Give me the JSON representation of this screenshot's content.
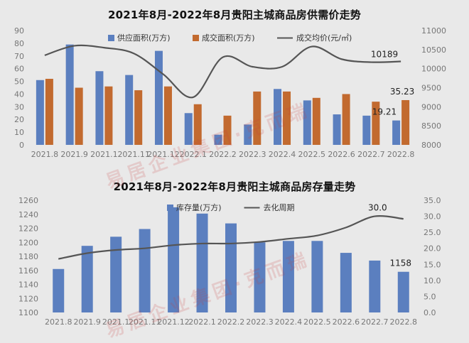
{
  "charts": [
    {
      "id": "top",
      "title": "2021年8月-2022年8月贵阳主城商品房供需价走势"
    },
    {
      "id": "bottom",
      "title": "2021年8月-2022年8月贵阳主城商品房存量走势"
    }
  ],
  "chart_data": [
    {
      "type": "bar",
      "title": "2021年8月-2022年8月贵阳主城商品房供需价走势",
      "categories": [
        "2021.8",
        "2021.9",
        "2021.10",
        "2021.11",
        "2021.12",
        "2022.1",
        "2022.2",
        "2022.3",
        "2022.4",
        "2022.5",
        "2022.6",
        "2022.7",
        "2022.8"
      ],
      "category_labels": [
        "2021.8",
        "2021.9",
        "2021.1",
        "2021.11",
        "2021.12",
        "2022.1",
        "2022.2",
        "2022.3",
        "2022.4",
        "2022.5",
        "2022.6",
        "2022.7",
        "2022.8"
      ],
      "series": [
        {
          "name": "供应面积(万方)",
          "type": "bar",
          "axis": "left",
          "color": "#5b7fbf",
          "values": [
            51,
            79,
            58,
            55,
            74,
            25,
            8,
            16,
            44,
            35,
            24,
            23,
            19.21
          ]
        },
        {
          "name": "成交面积(万方)",
          "type": "bar",
          "axis": "left",
          "color": "#c26a2f",
          "values": [
            52,
            45,
            46,
            43,
            46,
            32,
            23,
            42,
            42,
            37,
            40,
            34,
            35.23
          ]
        },
        {
          "name": "成交均价(元/㎡)",
          "type": "line",
          "axis": "right",
          "color": "#555555",
          "values": [
            10350,
            10600,
            10550,
            10400,
            9850,
            9250,
            10300,
            10050,
            10050,
            10580,
            10250,
            10170,
            10189
          ]
        }
      ],
      "ylim_left": [
        0,
        90
      ],
      "ylim_right": [
        8000,
        11000
      ],
      "yticks_left": [
        0,
        10,
        20,
        30,
        40,
        50,
        60,
        70,
        80,
        90
      ],
      "yticks_right": [
        8000,
        8500,
        9000,
        9500,
        10000,
        10500,
        11000
      ],
      "data_labels": [
        {
          "series": 0,
          "index": 12,
          "text": "19.21"
        },
        {
          "series": 1,
          "index": 12,
          "text": "35.23"
        },
        {
          "series": 2,
          "index": 12,
          "text": "10189"
        }
      ],
      "legend_position": "top",
      "grid": false
    },
    {
      "type": "bar",
      "title": "2021年8月-2022年8月贵阳主城商品房存量走势",
      "categories": [
        "2021.8",
        "2021.9",
        "2021.10",
        "2021.11",
        "2021.12",
        "2022.1",
        "2022.2",
        "2022.3",
        "2022.4",
        "2022.5",
        "2022.6",
        "2022.7",
        "2022.8"
      ],
      "category_labels": [
        "2021.8",
        "2021.9",
        "2021.1",
        "2021.11",
        "2021.12",
        "2022.1",
        "2022.2",
        "2022.3",
        "2022.4",
        "2022.5",
        "2022.6",
        "2022.7",
        "2022.8"
      ],
      "series": [
        {
          "name": "库存量(万方)",
          "type": "bar",
          "axis": "left",
          "color": "#5b7fbf",
          "values": [
            1162,
            1195,
            1208,
            1219,
            1250,
            1241,
            1227,
            1200,
            1202,
            1202,
            1185,
            1174,
            1158
          ]
        },
        {
          "name": "去化周期",
          "type": "line",
          "axis": "right",
          "color": "#555555",
          "values": [
            16.7,
            18.5,
            19.5,
            20.0,
            21.0,
            21.5,
            21.5,
            22.0,
            23.0,
            24.0,
            26.5,
            30.0,
            29.2
          ]
        }
      ],
      "ylim_left": [
        1100,
        1260
      ],
      "ylim_right": [
        0,
        35
      ],
      "yticks_left": [
        1100,
        1120,
        1140,
        1160,
        1180,
        1200,
        1220,
        1240,
        1260
      ],
      "yticks_right": [
        "0.0",
        "5.0",
        "10.0",
        "15.0",
        "20.0",
        "25.0",
        "30.0",
        "35.0"
      ],
      "data_labels": [
        {
          "series": 0,
          "index": 12,
          "text": "1158"
        },
        {
          "series": 1,
          "index": 11,
          "text": "30.0"
        }
      ],
      "legend_position": "top",
      "grid": false
    }
  ],
  "watermarks": [
    {
      "text": "易居企业集团·克而瑞"
    }
  ]
}
